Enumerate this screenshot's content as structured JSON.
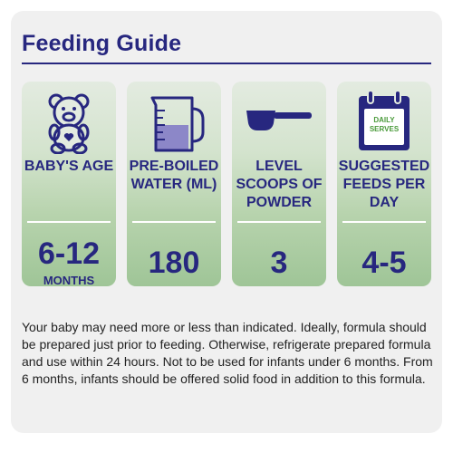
{
  "title": "Feeding Guide",
  "columns": [
    {
      "icon": "teddy-bear-icon",
      "head": "BABY'S AGE",
      "value": "6-12",
      "unit": "MONTHS"
    },
    {
      "icon": "measuring-jug-icon",
      "head": "PRE-BOILED WATER (mL)",
      "value": "180"
    },
    {
      "icon": "scoop-icon",
      "head": "LEVEL SCOOPS OF POWDER",
      "value": "3"
    },
    {
      "icon": "calendar-icon",
      "icon_text": "DAILY SERVES",
      "head": "SUGGESTED FEEDS PER DAY",
      "value": "4-5"
    }
  ],
  "note": "Your baby may need more or less than indicated. Ideally, formula should be prepared just prior to feeding. Otherwise, refrigerate prepared formula and use within 24 hours. Not to be used for infants under 6 months. From 6 months, infants should be offered solid food in addition to this formula.",
  "colors": {
    "navy": "#27277f",
    "green": "#b7d3ad",
    "purple": "#8c87c8"
  }
}
